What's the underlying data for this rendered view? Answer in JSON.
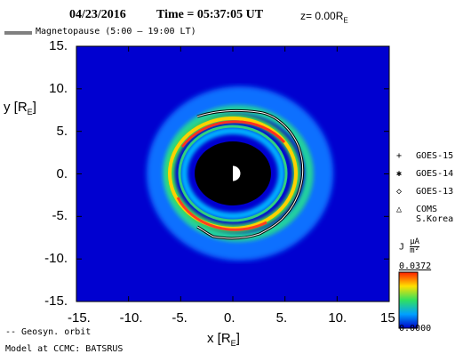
{
  "header": {
    "date": "04/23/2016",
    "time_label": "Time = 05:37:05 UT",
    "z_label": "z= 0.00R",
    "z_sub": "E"
  },
  "legend_top": {
    "magnetopause_label": "Magnetopause (5:00 – 19:00 LT)"
  },
  "legend_right": {
    "items": [
      {
        "symbol": "+",
        "label": "GOES-15"
      },
      {
        "symbol": "✱",
        "label": "GOES-14"
      },
      {
        "symbol": "◇",
        "label": "GOES-13"
      },
      {
        "symbol": "△",
        "label": "COMS"
      }
    ],
    "coms_sub": "S.Korea"
  },
  "colorbar": {
    "label": "J",
    "unit_num": "μA",
    "unit_den": "m²",
    "max_label": "0.0372",
    "min_label": "0.0000"
  },
  "footer": {
    "geosyn_label": "-- Geosyn. orbit",
    "model_label": "Model at CCMC: BATSRUS"
  },
  "colors": {
    "background": "#0000d0",
    "earth": "#000000",
    "ring_peak": "#ff2020",
    "accent_title": "#000000"
  },
  "chart_data": {
    "type": "heatmap",
    "title": "04/23/2016 Time = 05:37:05 UT z= 0.00RE",
    "xlabel": "x [RE]",
    "ylabel": "y [RE]",
    "xlim": [
      -15,
      15
    ],
    "ylim": [
      -15,
      15
    ],
    "x_ticks": [
      -15,
      -10,
      -5,
      0,
      5,
      10,
      15
    ],
    "y_ticks": [
      -15,
      -10,
      -5,
      0,
      5,
      10,
      15
    ],
    "x_tick_labels": [
      "-15.",
      "-10.",
      "-5.",
      "0.",
      "5.",
      "10.",
      "15"
    ],
    "y_tick_labels": [
      "-15.",
      "-10.",
      "-5.",
      "0.",
      "5.",
      "10.",
      "15."
    ],
    "colorbar_range": [
      0.0,
      0.0372
    ],
    "inner_boundary_radius": 3.5,
    "current_ring_radius": 5.6,
    "magnetopause_x_extent": 7.1,
    "magnetopause_y_extent": [
      -6.2,
      6.0
    ],
    "legend": "top-left"
  }
}
